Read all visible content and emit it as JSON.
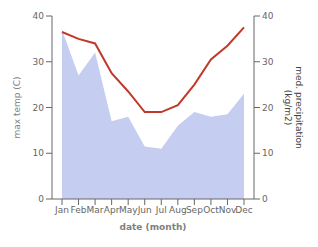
{
  "chart_data": {
    "type": "combo",
    "categories": [
      "Jan",
      "Feb",
      "Mar",
      "Apr",
      "May",
      "Jun",
      "Jul",
      "Aug",
      "Sep",
      "Oct",
      "Nov",
      "Dec"
    ],
    "series": [
      {
        "type": "area",
        "color": "#c5cdf0",
        "values": [
          37.0,
          27.0,
          32.0,
          17.0,
          18.0,
          11.5,
          11.0,
          16.0,
          19.0,
          18.0,
          18.5,
          23.0
        ]
      },
      {
        "type": "line",
        "color": "#c0392b",
        "axis": "y2",
        "values": [
          36.5,
          35.0,
          34.0,
          27.5,
          23.5,
          19.0,
          19.0,
          20.5,
          25.0,
          30.5,
          33.5,
          37.5
        ]
      }
    ],
    "xlabel": "date (month)",
    "ylabel": "max temp (C)",
    "y2label": "med. precipitation\n(kg/m2)",
    "ylim": [
      0,
      40
    ],
    "yticks": [
      0,
      10,
      20,
      30,
      40
    ],
    "y2lim": [
      0,
      40
    ],
    "y2ticks": [
      0,
      10,
      20,
      30,
      40
    ],
    "grid": false
  }
}
